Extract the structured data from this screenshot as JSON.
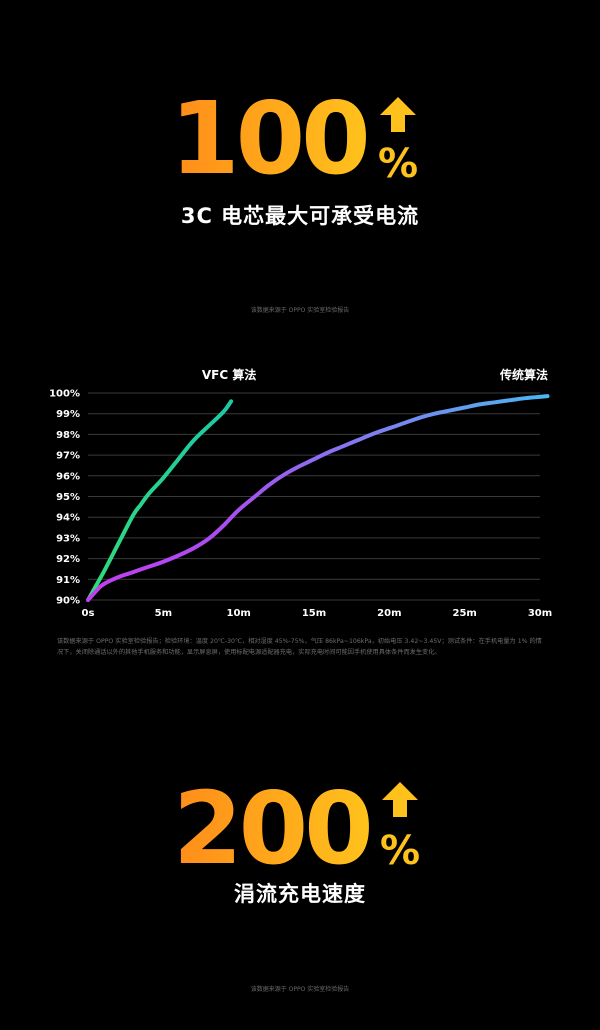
{
  "stat_top": {
    "number": "100",
    "percent": "%",
    "label": "3C 电芯最大可承受电流"
  },
  "note_top": "该数据来源于 OPPO 实验室检验报告",
  "chart_data": {
    "type": "line",
    "xlabel": "",
    "ylabel": "",
    "x_ticks": [
      "0s",
      "5m",
      "10m",
      "15m",
      "20m",
      "25m",
      "30m"
    ],
    "y_ticks": [
      "90%",
      "91%",
      "92%",
      "93%",
      "94%",
      "95%",
      "96%",
      "97%",
      "98%",
      "99%",
      "100%"
    ],
    "xlim": [
      0,
      30
    ],
    "ylim": [
      90,
      100
    ],
    "grid": true,
    "series": [
      {
        "name": "VFC 算法",
        "color_start": "#2fdc78",
        "color_end": "#1ec8a8",
        "x": [
          0,
          1,
          2,
          3,
          3.5,
          4,
          5,
          6,
          7,
          8,
          9,
          9.5
        ],
        "y": [
          90,
          91.3,
          92.7,
          94.1,
          94.6,
          95.1,
          95.9,
          96.8,
          97.7,
          98.4,
          99.1,
          99.6
        ]
      },
      {
        "name": "传统算法",
        "color_start": "#c23ef0",
        "color_end": "#4ab8f0",
        "x": [
          0,
          0.5,
          1,
          2,
          3,
          4,
          5,
          6,
          7,
          8,
          9,
          10,
          11,
          12,
          13,
          14,
          15,
          16,
          17,
          18,
          19,
          20,
          21,
          22,
          23,
          24,
          25,
          26,
          27,
          28,
          29,
          30.5
        ],
        "y": [
          90,
          90.4,
          90.75,
          91.1,
          91.35,
          91.6,
          91.85,
          92.15,
          92.5,
          92.95,
          93.6,
          94.35,
          94.95,
          95.55,
          96.05,
          96.45,
          96.8,
          97.15,
          97.45,
          97.75,
          98.05,
          98.3,
          98.55,
          98.8,
          99.0,
          99.15,
          99.3,
          99.45,
          99.55,
          99.65,
          99.75,
          99.85
        ]
      }
    ]
  },
  "fine_print": "该数据来源于 OPPO 实验室检验报告；检验环境：温度 20℃-30℃，相对湿度 45%-75%，气压 86kPa~106kPa，初始电压 3.42~3.45V；测试条件：在手机电量为 1% 的情况下，关闭除通话以外的其他手机服务和功能，显示屏息屏，使用标配电源适配器充电，实际充电时间可能因手机使用具体条件而发生变化。",
  "stat_bottom": {
    "number": "200",
    "percent": "%",
    "label": "涓流充电速度"
  },
  "note_bottom": "该数据来源于 OPPO 实验室检验报告",
  "colors": {
    "orange": "#ff8c1a",
    "yellow": "#ffc21c",
    "grid": "#3a3a3a",
    "axis_text": "#ffffff"
  },
  "icons": {
    "stat_top": "up-arrow-icon",
    "stat_bottom": "up-arrow-icon"
  }
}
